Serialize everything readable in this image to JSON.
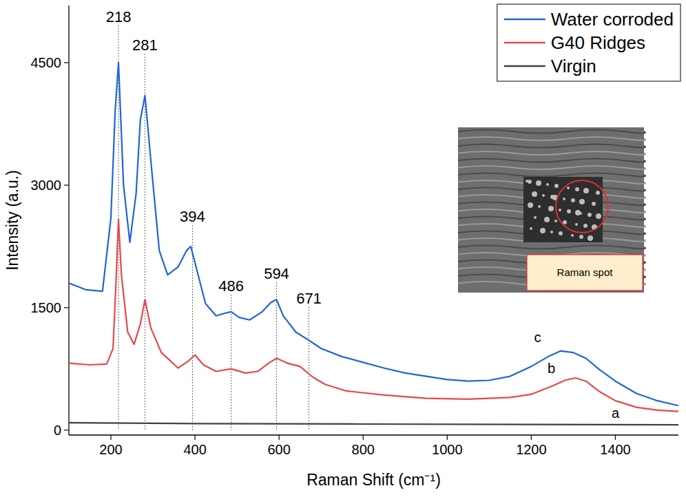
{
  "chart_data": {
    "type": "line",
    "x_label": "Raman Shift (cm⁻¹)",
    "y_label": "Intensity (a.u.)",
    "xlim": [
      100,
      1550
    ],
    "ylim": [
      -60,
      5200
    ],
    "xticks": [
      200,
      400,
      600,
      800,
      1000,
      1200,
      1400
    ],
    "yticks": [
      0,
      1500,
      3000,
      4500
    ],
    "grid": false,
    "legend": "upper right",
    "series": [
      {
        "name": "Water corroded",
        "color": "#1f64d8",
        "x": [
          100,
          140,
          180,
          200,
          210,
          218,
          230,
          245,
          260,
          270,
          281,
          295,
          315,
          335,
          360,
          380,
          390,
          405,
          425,
          450,
          470,
          486,
          505,
          530,
          560,
          580,
          594,
          610,
          640,
          671,
          700,
          750,
          800,
          850,
          900,
          950,
          1000,
          1050,
          1100,
          1150,
          1200,
          1240,
          1270,
          1300,
          1330,
          1360,
          1400,
          1450,
          1500,
          1550
        ],
        "values": [
          1800,
          1720,
          1700,
          2600,
          3900,
          4500,
          3000,
          2300,
          2900,
          3800,
          4100,
          3300,
          2200,
          1900,
          2000,
          2200,
          2250,
          1950,
          1550,
          1400,
          1430,
          1450,
          1380,
          1350,
          1450,
          1560,
          1600,
          1400,
          1200,
          1100,
          1000,
          900,
          830,
          760,
          700,
          660,
          620,
          600,
          610,
          660,
          780,
          900,
          970,
          950,
          880,
          750,
          600,
          450,
          360,
          300
        ]
      },
      {
        "name": "G40 Ridges",
        "color": "#e8474a",
        "x": [
          100,
          150,
          190,
          205,
          212,
          218,
          225,
          240,
          255,
          270,
          281,
          295,
          320,
          360,
          385,
          400,
          420,
          450,
          486,
          520,
          550,
          575,
          594,
          620,
          650,
          680,
          710,
          760,
          850,
          950,
          1050,
          1150,
          1200,
          1250,
          1280,
          1305,
          1330,
          1360,
          1400,
          1450,
          1500,
          1550
        ],
        "values": [
          820,
          800,
          810,
          1000,
          1800,
          2580,
          1900,
          1200,
          1050,
          1300,
          1600,
          1250,
          950,
          760,
          850,
          920,
          800,
          720,
          750,
          700,
          720,
          820,
          880,
          820,
          780,
          650,
          560,
          480,
          430,
          390,
          380,
          400,
          440,
          540,
          610,
          640,
          600,
          480,
          360,
          280,
          245,
          230
        ]
      },
      {
        "name": "Virgin",
        "color": "#404040",
        "x": [
          100,
          400,
          800,
          1200,
          1550
        ],
        "values": [
          90,
          80,
          75,
          70,
          65
        ]
      }
    ],
    "peak_labels": [
      {
        "label": "218",
        "x": 218,
        "y": 5000
      },
      {
        "label": "281",
        "x": 281,
        "y": 4650
      },
      {
        "label": "394",
        "x": 394,
        "y": 2550
      },
      {
        "label": "486",
        "x": 486,
        "y": 1700
      },
      {
        "label": "594",
        "x": 594,
        "y": 1850
      },
      {
        "label": "671",
        "x": 671,
        "y": 1550
      }
    ],
    "curve_labels": [
      {
        "text": "c",
        "x": 1215,
        "y": 1080
      },
      {
        "text": "b",
        "x": 1248,
        "y": 700
      },
      {
        "text": "a",
        "x": 1400,
        "y": 150
      }
    ],
    "inset": {
      "label": "Raman spot"
    }
  }
}
